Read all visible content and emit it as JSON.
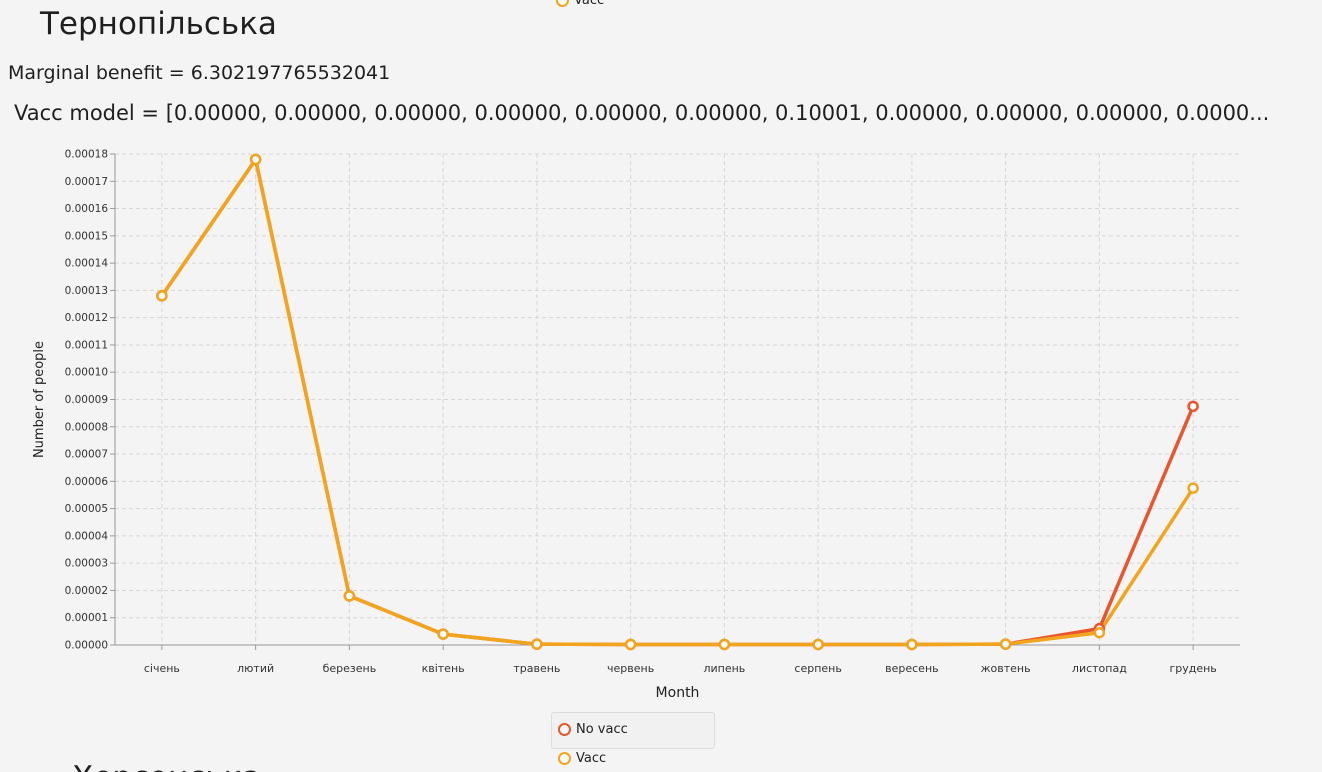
{
  "top_legend": {
    "label": "Vacc"
  },
  "region_title": "Тернопільська",
  "benefit_text": "Marginal benefit = 6.302197765532041",
  "vacc_model_text": "Vacc model = [0.00000, 0.00000, 0.00000, 0.00000, 0.00000, 0.00000, 0.10001, 0.00000, 0.00000, 0.00000, 0.0000...",
  "next_title": "Херсонська",
  "colors": {
    "no_vacc": "#e8552e",
    "vacc": "#f3a41d",
    "grid": "#d6d6d6",
    "axis": "#999999"
  },
  "chart_data": {
    "type": "line",
    "xlabel": "Month",
    "ylabel": "Number of people",
    "categories": [
      "січень",
      "лютий",
      "березень",
      "квітень",
      "травень",
      "червень",
      "липень",
      "серпень",
      "вересень",
      "жовтень",
      "листопад",
      "грудень"
    ],
    "ylim": [
      0,
      0.00018
    ],
    "yticks": [
      "0.00000",
      "0.00001",
      "0.00002",
      "0.00003",
      "0.00004",
      "0.00005",
      "0.00006",
      "0.00007",
      "0.00008",
      "0.00009",
      "0.00010",
      "0.00011",
      "0.00012",
      "0.00013",
      "0.00014",
      "0.00015",
      "0.00016",
      "0.00017",
      "0.00018"
    ],
    "grid": true,
    "legend_position": "bottom",
    "series": [
      {
        "name": "No vacc",
        "color": "#e8552e",
        "values": [
          0.000128,
          0.000178,
          1.8e-05,
          4e-06,
          3e-07,
          2e-07,
          2e-07,
          2e-07,
          2e-07,
          3e-07,
          6e-06,
          8.75e-05
        ]
      },
      {
        "name": "Vacc",
        "color": "#f3a41d",
        "values": [
          0.000128,
          0.000178,
          1.8e-05,
          4e-06,
          3e-07,
          2e-07,
          2e-07,
          2e-07,
          2e-07,
          3e-07,
          4.5e-06,
          5.75e-05
        ]
      }
    ]
  }
}
